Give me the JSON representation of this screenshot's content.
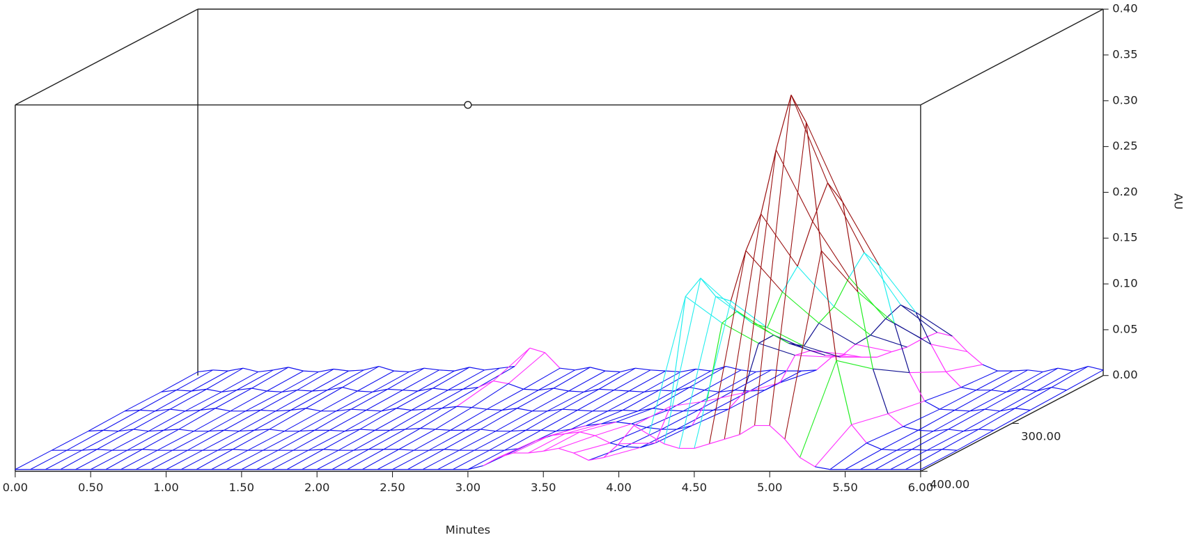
{
  "chart_data": {
    "type": "surface3d",
    "x_label": "Minutes",
    "y_label": "AU",
    "xlim": [
      0,
      6
    ],
    "xticks": [
      {
        "value": 0,
        "label": "0.00"
      },
      {
        "value": 0.5,
        "label": "0.50"
      },
      {
        "value": 1,
        "label": "1.00"
      },
      {
        "value": 1.5,
        "label": "1.50"
      },
      {
        "value": 2,
        "label": "2.00"
      },
      {
        "value": 2.5,
        "label": "2.50"
      },
      {
        "value": 3,
        "label": "3.00"
      },
      {
        "value": 3.5,
        "label": "3.50"
      },
      {
        "value": 4,
        "label": "4.00"
      },
      {
        "value": 4.5,
        "label": "4.50"
      },
      {
        "value": 5,
        "label": "5.00"
      },
      {
        "value": 5.5,
        "label": "5.50"
      },
      {
        "value": 6,
        "label": "6.00"
      }
    ],
    "ylim": [
      0,
      0.4
    ],
    "yticks": [
      {
        "value": 0,
        "label": "0.00"
      },
      {
        "value": 0.05,
        "label": "0.05"
      },
      {
        "value": 0.1,
        "label": "0.10"
      },
      {
        "value": 0.15,
        "label": "0.15"
      },
      {
        "value": 0.2,
        "label": "0.20"
      },
      {
        "value": 0.25,
        "label": "0.25"
      },
      {
        "value": 0.3,
        "label": "0.30"
      },
      {
        "value": 0.35,
        "label": "0.35"
      },
      {
        "value": 0.4,
        "label": "0.40"
      }
    ],
    "zlim": [
      200,
      400
    ],
    "zticks": [
      {
        "value": 300,
        "label": "300.00"
      },
      {
        "value": 400,
        "label": "400.00"
      }
    ],
    "color_bands": {
      "levels": [
        0.015,
        0.06,
        0.1,
        0.16,
        0.22
      ],
      "colors": [
        "#1010ee",
        "#ff30ff",
        "#101090",
        "#22ee22",
        "#22eeee",
        "#9a1010"
      ]
    },
    "x": [
      0,
      0.1,
      0.2,
      0.3,
      0.4,
      0.5,
      0.6,
      0.7,
      0.8,
      0.9,
      1,
      1.1,
      1.2,
      1.3,
      1.4,
      1.5,
      1.6,
      1.7,
      1.8,
      1.9,
      2,
      2.1,
      2.2,
      2.3,
      2.4,
      2.5,
      2.6,
      2.7,
      2.8,
      2.9,
      3,
      3.1,
      3.2,
      3.3,
      3.4,
      3.5,
      3.6,
      3.7,
      3.8,
      3.9,
      4,
      4.1,
      4.2,
      4.3,
      4.4,
      4.5,
      4.6,
      4.7,
      4.8,
      4.9,
      5,
      5.1,
      5.2,
      5.3,
      5.4,
      5.5,
      5.6,
      5.7,
      5.8,
      5.9,
      6
    ],
    "series": [
      {
        "z": 200,
        "values": [
          0.004,
          0.006,
          0.005,
          0.008,
          0.004,
          0.006,
          0.009,
          0.005,
          0.004,
          0.007,
          0.005,
          0.006,
          0.01,
          0.005,
          0.004,
          0.008,
          0.006,
          0.005,
          0.009,
          0.006,
          0.008,
          0.01,
          0.03,
          0.025,
          0.008,
          0.006,
          0.009,
          0.005,
          0.004,
          0.008,
          0.006,
          0.005,
          0.004,
          0.007,
          0.005,
          0.01,
          0.006,
          0.004,
          0.006,
          0.005,
          0.005,
          0.006,
          0.02,
          0.023,
          0.02,
          0.02,
          0.026,
          0.031,
          0.04,
          0.047,
          0.043,
          0.026,
          0.012,
          0.005,
          0.005,
          0.006,
          0.004,
          0.008,
          0.005,
          0.01,
          0.006
        ]
      },
      {
        "z": 240,
        "values": [
          0.003,
          0.005,
          0.004,
          0.006,
          0.003,
          0.005,
          0.007,
          0.004,
          0.003,
          0.005,
          0.004,
          0.005,
          0.008,
          0.004,
          0.003,
          0.006,
          0.005,
          0.004,
          0.007,
          0.005,
          0.006,
          0.008,
          0.015,
          0.012,
          0.006,
          0.005,
          0.007,
          0.004,
          0.003,
          0.006,
          0.005,
          0.004,
          0.003,
          0.005,
          0.004,
          0.008,
          0.005,
          0.003,
          0.005,
          0.004,
          0.005,
          0.013,
          0.043,
          0.048,
          0.043,
          0.041,
          0.055,
          0.065,
          0.083,
          0.098,
          0.09,
          0.055,
          0.025,
          0.008,
          0.005,
          0.005,
          0.003,
          0.006,
          0.004,
          0.008,
          0.005
        ]
      },
      {
        "z": 280,
        "values": [
          0.003,
          0.004,
          0.003,
          0.005,
          0.003,
          0.004,
          0.006,
          0.003,
          0.003,
          0.004,
          0.003,
          0.004,
          0.006,
          0.003,
          0.003,
          0.005,
          0.004,
          0.003,
          0.006,
          0.004,
          0.005,
          0.006,
          0.008,
          0.007,
          0.005,
          0.004,
          0.006,
          0.003,
          0.003,
          0.005,
          0.004,
          0.003,
          0.003,
          0.004,
          0.003,
          0.006,
          0.004,
          0.003,
          0.004,
          0.004,
          0.005,
          0.023,
          0.077,
          0.086,
          0.077,
          0.074,
          0.099,
          0.117,
          0.149,
          0.176,
          0.162,
          0.099,
          0.045,
          0.014,
          0.005,
          0.004,
          0.003,
          0.005,
          0.003,
          0.006,
          0.004
        ]
      },
      {
        "z": 320,
        "values": [
          0.002,
          0.003,
          0.002,
          0.004,
          0.002,
          0.003,
          0.004,
          0.002,
          0.002,
          0.003,
          0.002,
          0.003,
          0.004,
          0.002,
          0.002,
          0.003,
          0.003,
          0.002,
          0.004,
          0.003,
          0.003,
          0.004,
          0.005,
          0.004,
          0.003,
          0.003,
          0.004,
          0.002,
          0.002,
          0.003,
          0.003,
          0.002,
          0.004,
          0.008,
          0.01,
          0.012,
          0.01,
          0.006,
          0.004,
          0.004,
          0.008,
          0.035,
          0.12,
          0.133,
          0.12,
          0.115,
          0.154,
          0.182,
          0.231,
          0.273,
          0.252,
          0.154,
          0.07,
          0.021,
          0.007,
          0.003,
          0.002,
          0.004,
          0.002,
          0.004,
          0.003
        ]
      },
      {
        "z": 360,
        "values": [
          0.002,
          0.002,
          0.002,
          0.003,
          0.002,
          0.002,
          0.003,
          0.002,
          0.002,
          0.002,
          0.002,
          0.002,
          0.003,
          0.002,
          0.002,
          0.002,
          0.002,
          0.002,
          0.003,
          0.002,
          0.002,
          0.003,
          0.003,
          0.003,
          0.002,
          0.002,
          0.003,
          0.002,
          0.002,
          0.002,
          0.002,
          0.004,
          0.012,
          0.018,
          0.02,
          0.022,
          0.018,
          0.01,
          0.006,
          0.005,
          0.01,
          0.05,
          0.17,
          0.19,
          0.17,
          0.165,
          0.22,
          0.26,
          0.33,
          0.39,
          0.36,
          0.22,
          0.1,
          0.03,
          0.01,
          0.003,
          0.002,
          0.003,
          0.002,
          0.003,
          0.002
        ]
      },
      {
        "z": 400,
        "values": [
          0.002,
          0.002,
          0.002,
          0.002,
          0.002,
          0.002,
          0.002,
          0.002,
          0.002,
          0.002,
          0.002,
          0.002,
          0.002,
          0.002,
          0.002,
          0.002,
          0.002,
          0.002,
          0.002,
          0.002,
          0.002,
          0.002,
          0.002,
          0.002,
          0.002,
          0.002,
          0.002,
          0.002,
          0.002,
          0.002,
          0.002,
          0.006,
          0.015,
          0.02,
          0.02,
          0.022,
          0.025,
          0.02,
          0.012,
          0.015,
          0.03,
          0.05,
          0.04,
          0.03,
          0.025,
          0.025,
          0.03,
          0.035,
          0.04,
          0.05,
          0.05,
          0.035,
          0.015,
          0.005,
          0.002,
          0.002,
          0.002,
          0.002,
          0.002,
          0.002,
          0.002
        ]
      }
    ]
  }
}
